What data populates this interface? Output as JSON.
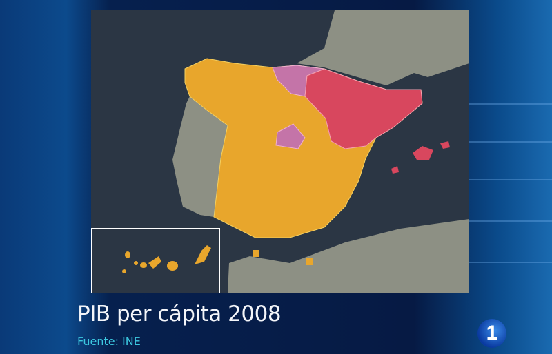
{
  "caption": {
    "title": "PIB per cápita 2008",
    "source": "Fuente: INE"
  },
  "channel_logo": {
    "text": "1"
  },
  "map": {
    "region": "Spain",
    "colors": {
      "sea": "#2b3644",
      "land": "#8d9084",
      "base_regions": "#e8a62c",
      "high_regions": "#d8475e",
      "highest_regions": "#c474a8"
    }
  }
}
